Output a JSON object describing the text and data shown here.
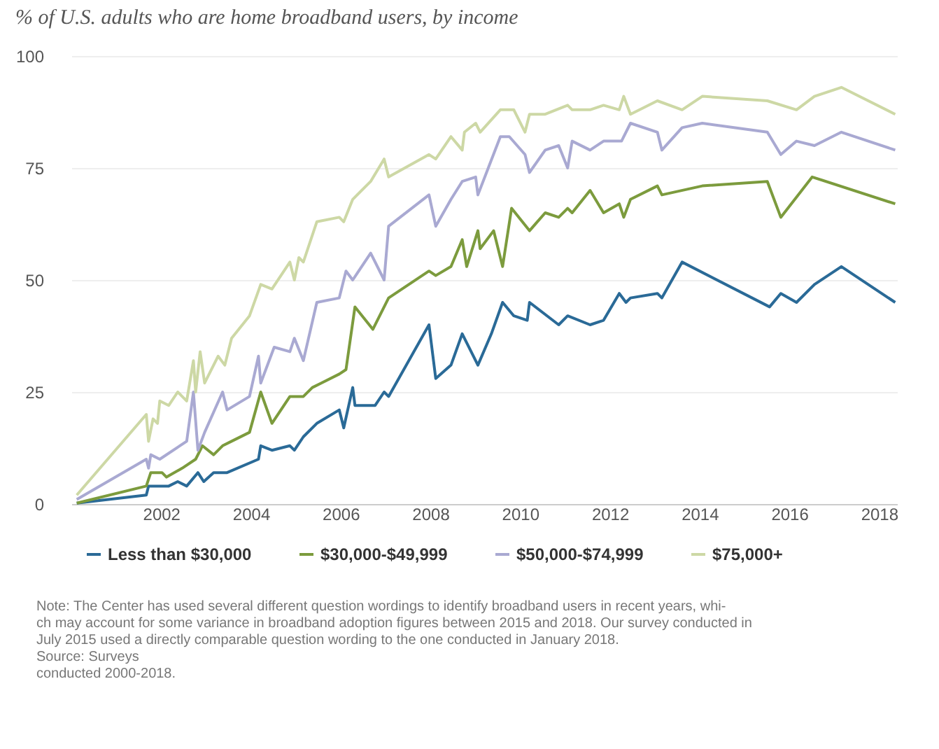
{
  "chart_data": {
    "type": "line",
    "title": "% of U.S. adults who are home broadband users, by income",
    "xlim": [
      2000,
      2018.4
    ],
    "xticks": [
      2002,
      2004,
      2006,
      2008,
      2010,
      2012,
      2014,
      2016,
      2018
    ],
    "ylim": [
      0,
      100
    ],
    "yticks": [
      0,
      25,
      50,
      75,
      100
    ],
    "grid": "y",
    "legend": "bottom",
    "marker": "none",
    "line_style": "solid",
    "series": [
      {
        "name": "Less than $30,000",
        "color": "#2a6a97",
        "x": [
          2000.12,
          2001.67,
          2001.72,
          2002.17,
          2002.37,
          2002.57,
          2002.82,
          2002.95,
          2003.17,
          2003.47,
          2004.17,
          2004.22,
          2004.47,
          2004.87,
          2004.97,
          2005.17,
          2005.47,
          2005.97,
          2006.07,
          2006.27,
          2006.32,
          2006.77,
          2006.97,
          2007.07,
          2007.97,
          2008.12,
          2008.46,
          2008.71,
          2009.06,
          2009.36,
          2009.61,
          2009.86,
          2010.16,
          2010.21,
          2010.86,
          2011.06,
          2011.56,
          2011.86,
          2012.21,
          2012.36,
          2012.46,
          2013.06,
          2013.16,
          2013.61,
          2015.56,
          2015.81,
          2016.16,
          2016.56,
          2017.16,
          2018.36
        ],
        "values": [
          0.2,
          2,
          4,
          4,
          5,
          4,
          7,
          5,
          7,
          7,
          10,
          13,
          12,
          13,
          12,
          15,
          18,
          21,
          17,
          26,
          22,
          22,
          25,
          24,
          40,
          28,
          31,
          38,
          31,
          38,
          45,
          42,
          41,
          45,
          40,
          42,
          40,
          41,
          47,
          45,
          46,
          47,
          46,
          54,
          44,
          47,
          45,
          49,
          53,
          45
        ]
      },
      {
        "name": "$30,000-$49,999",
        "color": "#7c9b3d",
        "x": [
          2000.12,
          2001.67,
          2001.77,
          2002.02,
          2002.12,
          2002.47,
          2002.77,
          2002.92,
          2003.17,
          2003.37,
          2003.57,
          2003.97,
          2004.22,
          2004.47,
          2004.87,
          2005.17,
          2005.37,
          2005.57,
          2005.97,
          2006.12,
          2006.32,
          2006.72,
          2007.07,
          2007.97,
          2008.12,
          2008.46,
          2008.71,
          2008.81,
          2009.06,
          2009.11,
          2009.41,
          2009.61,
          2009.81,
          2010.21,
          2010.56,
          2010.86,
          2011.06,
          2011.16,
          2011.56,
          2011.86,
          2012.21,
          2012.31,
          2012.46,
          2013.06,
          2013.16,
          2014.06,
          2015.51,
          2015.81,
          2016.51,
          2018.36
        ],
        "values": [
          0.2,
          4,
          7,
          7,
          6,
          8,
          10,
          13,
          11,
          13,
          14,
          16,
          25,
          18,
          24,
          24,
          26,
          27,
          29,
          30,
          44,
          39,
          46,
          52,
          51,
          53,
          59,
          53,
          61,
          57,
          61,
          53,
          66,
          61,
          65,
          64,
          66,
          65,
          70,
          65,
          67,
          64,
          68,
          71,
          69,
          71,
          72,
          64,
          73,
          67
        ]
      },
      {
        "name": "$50,000-$74,999",
        "color": "#a9a9d2",
        "x": [
          2000.12,
          2001.67,
          2001.72,
          2001.77,
          2001.97,
          2002.57,
          2002.72,
          2002.82,
          2002.97,
          2003.37,
          2003.47,
          2003.97,
          2004.17,
          2004.22,
          2004.52,
          2004.87,
          2004.97,
          2005.17,
          2005.47,
          2005.97,
          2006.12,
          2006.27,
          2006.67,
          2006.97,
          2007.07,
          2007.97,
          2008.12,
          2008.46,
          2008.71,
          2009.01,
          2009.06,
          2009.56,
          2009.76,
          2010.11,
          2010.21,
          2010.56,
          2010.86,
          2011.06,
          2011.16,
          2011.56,
          2011.86,
          2012.26,
          2012.46,
          2013.06,
          2013.16,
          2013.61,
          2014.06,
          2015.51,
          2015.81,
          2016.16,
          2016.56,
          2017.16,
          2018.36
        ],
        "values": [
          1,
          10,
          8,
          11,
          10,
          14,
          25,
          12,
          16,
          25,
          21,
          24,
          33,
          27,
          35,
          34,
          37,
          32,
          45,
          46,
          52,
          50,
          56,
          50,
          62,
          69,
          62,
          68,
          72,
          73,
          69,
          82,
          82,
          78,
          74,
          79,
          80,
          75,
          81,
          79,
          81,
          81,
          85,
          83,
          79,
          84,
          85,
          83,
          78,
          81,
          80,
          83,
          79
        ]
      },
      {
        "name": "$75,000+",
        "color": "#cdd8a5",
        "x": [
          2000.12,
          2001.67,
          2001.72,
          2001.82,
          2001.92,
          2001.97,
          2002.17,
          2002.37,
          2002.57,
          2002.72,
          2002.77,
          2002.87,
          2002.97,
          2003.27,
          2003.42,
          2003.57,
          2003.97,
          2004.22,
          2004.47,
          2004.87,
          2004.97,
          2005.07,
          2005.17,
          2005.47,
          2005.97,
          2006.07,
          2006.27,
          2006.67,
          2006.97,
          2007.07,
          2007.97,
          2008.12,
          2008.46,
          2008.71,
          2008.76,
          2009.01,
          2009.11,
          2009.56,
          2009.86,
          2010.11,
          2010.21,
          2010.56,
          2011.06,
          2011.16,
          2011.56,
          2011.86,
          2012.21,
          2012.31,
          2012.46,
          2013.06,
          2013.61,
          2014.06,
          2015.51,
          2016.16,
          2016.56,
          2017.16,
          2018.36
        ],
        "values": [
          2,
          20,
          14,
          19,
          18,
          23,
          22,
          25,
          23,
          32,
          25,
          34,
          27,
          33,
          31,
          37,
          42,
          49,
          48,
          54,
          50,
          55,
          54,
          63,
          64,
          63,
          68,
          72,
          77,
          73,
          78,
          77,
          82,
          79,
          83,
          85,
          83,
          88,
          88,
          83,
          87,
          87,
          89,
          88,
          88,
          89,
          88,
          91,
          87,
          90,
          88,
          91,
          90,
          88,
          91,
          93,
          87
        ]
      }
    ],
    "annotations": [
      "Note: The Center has used several different question wordings to identify broadband users in recent years, whi-\nch may account for some variance in broadband adoption figures between 2015 and 2018. Our survey conducted in\nJuly 2015 used a directly comparable question wording to the one conducted in January 2018.",
      "Source: Surveys\n conducted 2000-2018."
    ]
  }
}
